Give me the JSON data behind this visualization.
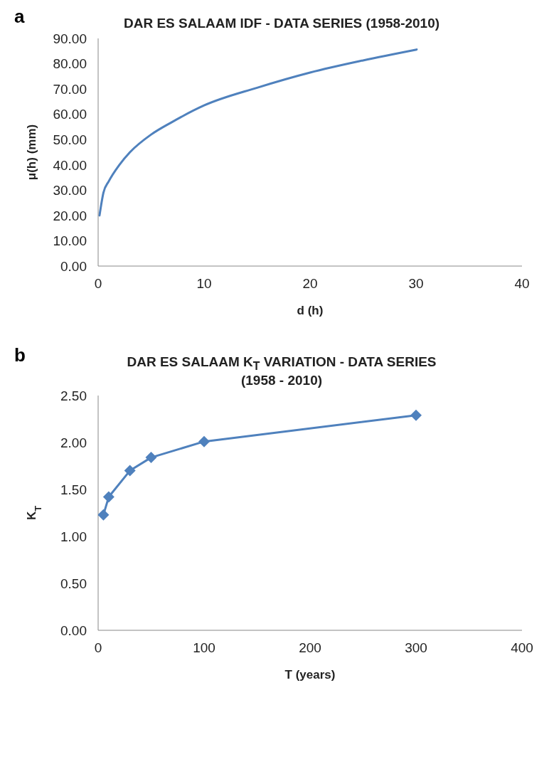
{
  "chart_data": [
    {
      "type": "line",
      "title": "DAR ES SALAAM IDF - DATA SERIES (1958-2010)",
      "xlabel": "d   (h)",
      "ylabel": "μ(h)   (mm)",
      "annotations": [
        "a"
      ],
      "series": [
        {
          "color": "#4f81bd",
          "x": [
            0.13,
            0.5,
            1,
            2,
            3,
            5,
            7,
            10,
            15,
            20,
            25,
            30.06
          ],
          "values": [
            20.0,
            29,
            33.5,
            40,
            45,
            52,
            57,
            63.5,
            70.5,
            76.5,
            81.3,
            85.6
          ]
        }
      ],
      "xlim": [
        0,
        40
      ],
      "xticks": [
        0,
        10,
        20,
        30,
        40
      ],
      "ylim": [
        0,
        90
      ],
      "yticks": [
        {
          "value": 0,
          "label": "0.00"
        },
        {
          "value": 10,
          "label": "10.00"
        },
        {
          "value": 20,
          "label": "20.00"
        },
        {
          "value": 30,
          "label": "30.00"
        },
        {
          "value": 40,
          "label": "40.00"
        },
        {
          "value": 50,
          "label": "50.00"
        },
        {
          "value": 60,
          "label": "60.00"
        },
        {
          "value": 70,
          "label": "70.00"
        },
        {
          "value": 80,
          "label": "80.00"
        },
        {
          "value": 90,
          "label": "90.00"
        }
      ],
      "marker": "none"
    },
    {
      "type": "line",
      "title": "DAR ES SALAAM K$_{T}$ VARIATION  - DATA SERIES (1958 - 2010)",
      "xlabel": "T (years)",
      "ylabel": "K$_{T}$",
      "annotations": [
        "b"
      ],
      "series": [
        {
          "color": "#4f81bd",
          "x": [
            5,
            10,
            30,
            50,
            100,
            300
          ],
          "values": [
            1.23,
            1.42,
            1.7,
            1.84,
            2.01,
            2.29
          ]
        }
      ],
      "xlim": [
        0,
        400
      ],
      "xticks": [
        0,
        100,
        200,
        300,
        400
      ],
      "ylim": [
        0,
        2.5
      ],
      "yticks": [
        {
          "value": 0,
          "label": "0.00"
        },
        {
          "value": 0.5,
          "label": "0.50"
        },
        {
          "value": 1,
          "label": "1.00"
        },
        {
          "value": 1.5,
          "label": "1.50"
        },
        {
          "value": 2,
          "label": "2.00"
        },
        {
          "value": 2.5,
          "label": "2.50"
        }
      ],
      "marker": "diamond"
    }
  ]
}
